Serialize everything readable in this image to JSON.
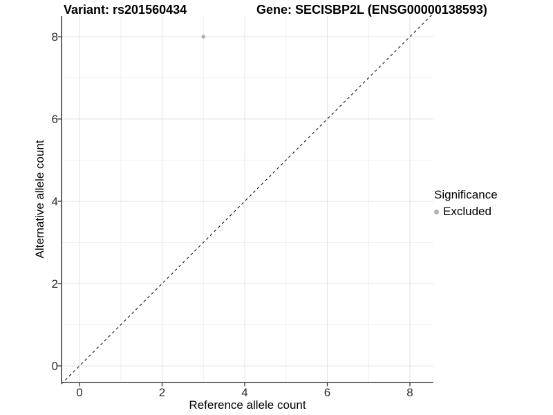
{
  "chart_data": {
    "type": "scatter",
    "title_left": "Variant: rs201560434",
    "title_right": "Gene: SECISBP2L (ENSG00000138593)",
    "xlabel": "Reference allele count",
    "ylabel": "Alternative allele count",
    "x_ticks": [
      0,
      2,
      4,
      6,
      8
    ],
    "y_ticks": [
      0,
      2,
      4,
      6,
      8
    ],
    "x_minor": [
      1,
      3,
      5,
      7
    ],
    "y_minor": [
      1,
      3,
      5,
      7
    ],
    "xlim": [
      -0.45,
      8.57
    ],
    "ylim": [
      -0.42,
      8.9
    ],
    "grid": true,
    "series": [
      {
        "name": "Excluded",
        "color": "#b0b0b0",
        "points": [
          {
            "x": 3,
            "y": 8
          }
        ]
      }
    ],
    "reference_line": {
      "type": "identity",
      "style": "dashed",
      "from": [
        -0.44,
        -0.44
      ],
      "to": [
        8.57,
        8.57
      ]
    },
    "legend": {
      "title": "Significance",
      "position": "right",
      "items": [
        {
          "label": "Excluded",
          "color": "#b0b0b0"
        }
      ]
    }
  },
  "colors": {
    "background": "#ffffff",
    "grid_major": "#e3e3e3",
    "grid_minor": "#f0f0f0",
    "axis_line": "#3f3f3f",
    "tick_mark": "#333333",
    "identity_line": "#111111",
    "point": "#b0b0b0"
  }
}
